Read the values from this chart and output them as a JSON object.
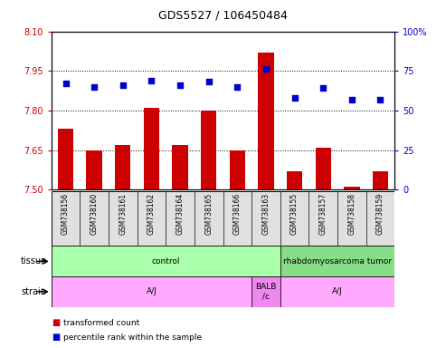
{
  "title": "GDS5527 / 106450484",
  "samples": [
    "GSM738156",
    "GSM738160",
    "GSM738161",
    "GSM738162",
    "GSM738164",
    "GSM738165",
    "GSM738166",
    "GSM738163",
    "GSM738155",
    "GSM738157",
    "GSM738158",
    "GSM738159"
  ],
  "bar_values": [
    7.73,
    7.65,
    7.67,
    7.81,
    7.67,
    7.8,
    7.65,
    8.02,
    7.57,
    7.66,
    7.51,
    7.57
  ],
  "dot_values": [
    67,
    65,
    66,
    69,
    66,
    68,
    65,
    76,
    58,
    64,
    57,
    57
  ],
  "ylim_left": [
    7.5,
    8.1
  ],
  "ylim_right": [
    0,
    100
  ],
  "yticks_left": [
    7.5,
    7.65,
    7.8,
    7.95,
    8.1
  ],
  "yticks_right": [
    0,
    25,
    50,
    75,
    100
  ],
  "bar_color": "#cc0000",
  "dot_color": "#0000cc",
  "bar_baseline": 7.5,
  "tissue_groups": [
    {
      "label": "control",
      "start": 0,
      "end": 8,
      "color": "#aaffaa"
    },
    {
      "label": "rhabdomyosarcoma tumor",
      "start": 8,
      "end": 12,
      "color": "#88dd88"
    }
  ],
  "strain_groups": [
    {
      "label": "A/J",
      "start": 0,
      "end": 7,
      "color": "#ffaaff"
    },
    {
      "label": "BALB\n/c",
      "start": 7,
      "end": 8,
      "color": "#ee88ee"
    },
    {
      "label": "A/J",
      "start": 8,
      "end": 12,
      "color": "#ffaaff"
    }
  ],
  "legend_items": [
    {
      "label": "transformed count",
      "color": "#cc0000"
    },
    {
      "label": "percentile rank within the sample",
      "color": "#0000cc"
    }
  ],
  "ylabel_left_color": "#cc0000",
  "ylabel_right_color": "#0000cc",
  "right_tick_labels": [
    "0",
    "25",
    "50",
    "75",
    "100%"
  ]
}
